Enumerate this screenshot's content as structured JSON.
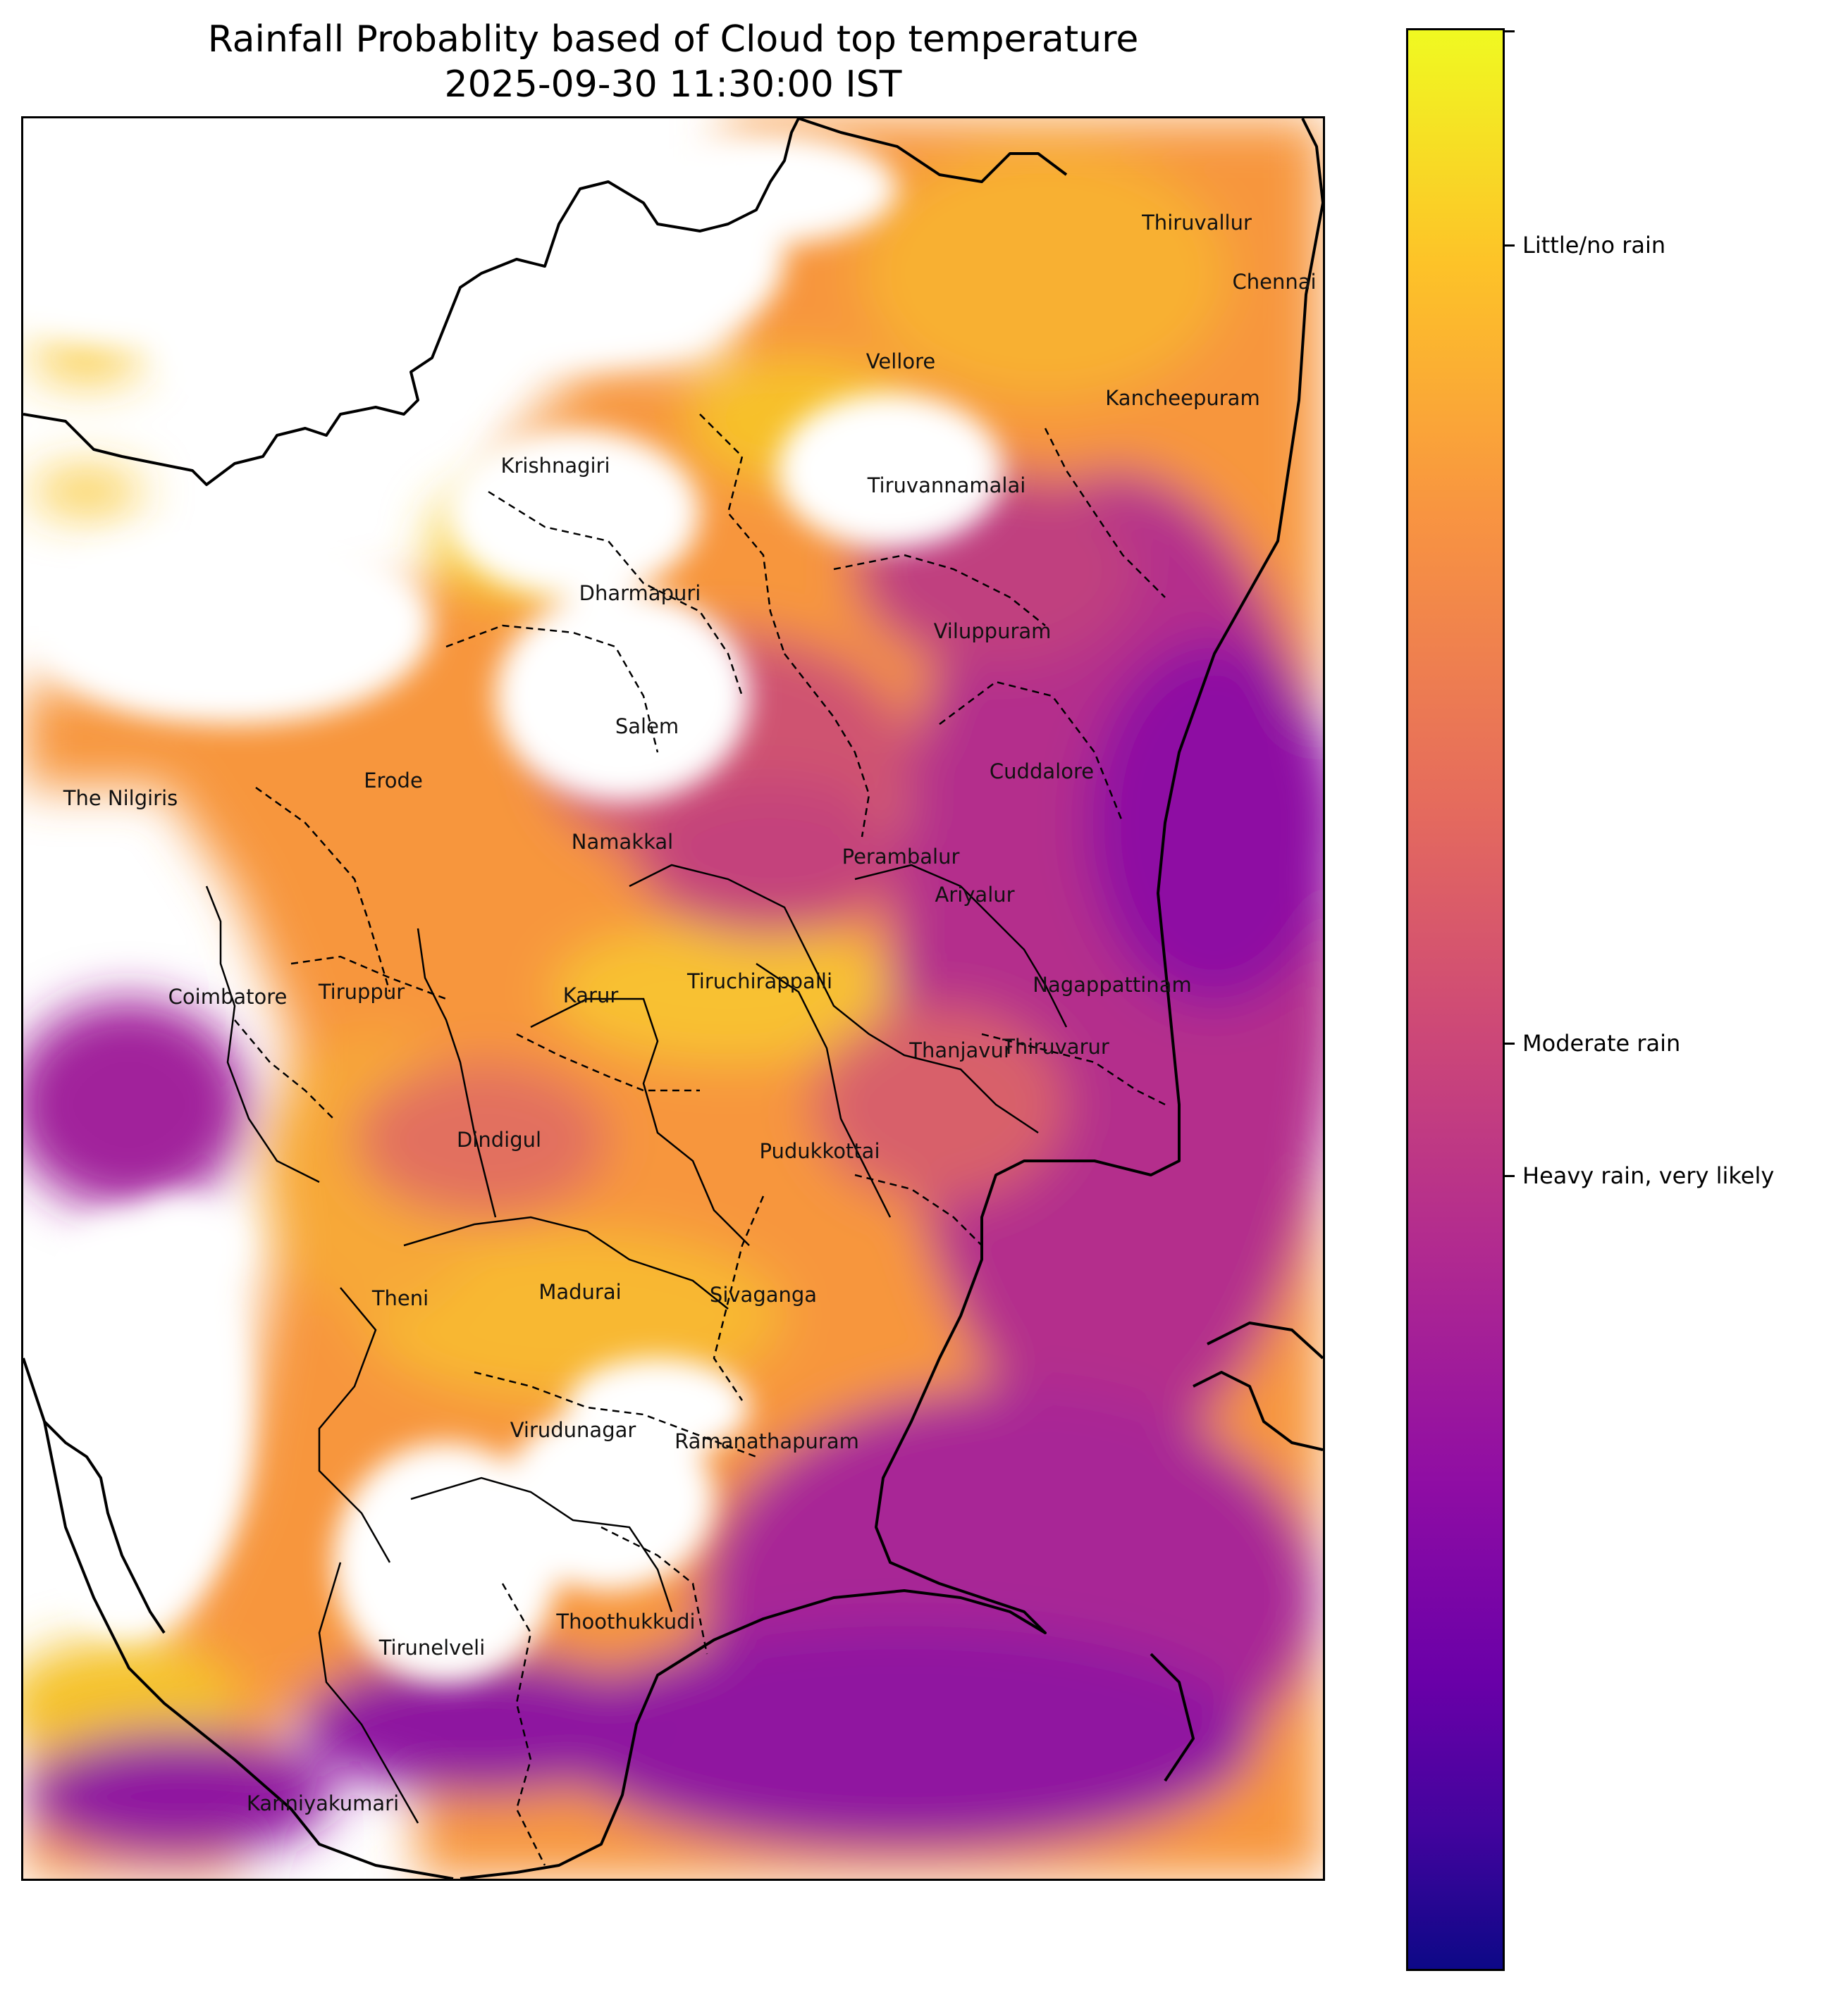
{
  "title": {
    "line1": "Rainfall Probablity based of Cloud top temperature",
    "line2": "2025-09-30 11:30:00 IST"
  },
  "colorbar": {
    "colormap": "plasma",
    "labels": [
      "Little/no rain",
      "Moderate rain",
      "Heavy rain, very likely"
    ]
  },
  "districts": [
    "Thiruvallur",
    "Chennai",
    "Vellore",
    "Kancheepuram",
    "Krishnagiri",
    "Tiruvannamalai",
    "Dharmapuri",
    "Viluppuram",
    "Salem",
    "Cuddalore",
    "The Nilgiris",
    "Erode",
    "Namakkal",
    "Perambalur",
    "Ariyalur",
    "Coimbatore",
    "Tiruppur",
    "Karur",
    "Tiruchirappalli",
    "Nagappattinam",
    "Thanjavur",
    "Thiruvarur",
    "Dindigul",
    "Pudukkottai",
    "Theni",
    "Madurai",
    "Sivaganga",
    "Virudunagar",
    "Ramanathapuram",
    "Thoothukkudi",
    "Tirunelveli",
    "Kanniyakumari"
  ]
}
